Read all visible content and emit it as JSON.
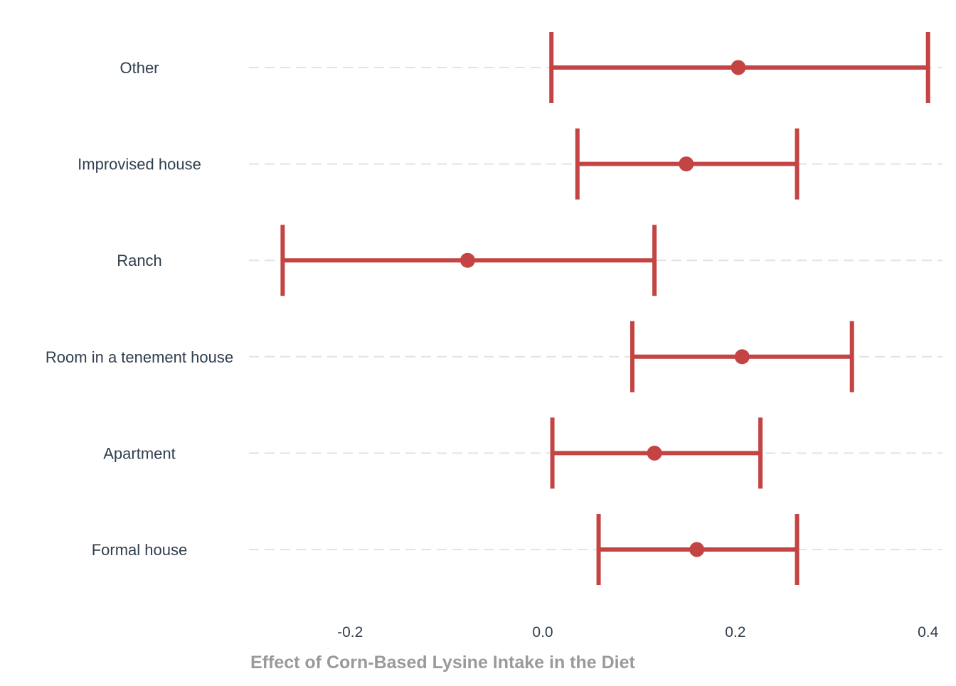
{
  "chart_data": {
    "type": "errorbar",
    "orientation": "horizontal",
    "xlabel": "Effect of Corn-Based Lysine Intake in the Diet",
    "ylabel": "",
    "xlim": [
      -0.305,
      0.415
    ],
    "xticks": [
      -0.2,
      0.0,
      0.2,
      0.4
    ],
    "xtick_labels": [
      "-0.2",
      "0.0",
      "0.2",
      "0.4"
    ],
    "grid": "horizontal dashed",
    "legend": "none",
    "color": "#c44444",
    "categories": [
      "Other",
      "Improvised house",
      "Ranch",
      "Room in a tenement house",
      "Apartment",
      "Formal house"
    ],
    "estimates": [
      0.203,
      0.149,
      -0.078,
      0.207,
      0.116,
      0.16
    ],
    "lower": [
      0.009,
      0.036,
      -0.27,
      0.093,
      0.01,
      0.058
    ],
    "upper": [
      0.4,
      0.264,
      0.116,
      0.321,
      0.226,
      0.264
    ]
  }
}
